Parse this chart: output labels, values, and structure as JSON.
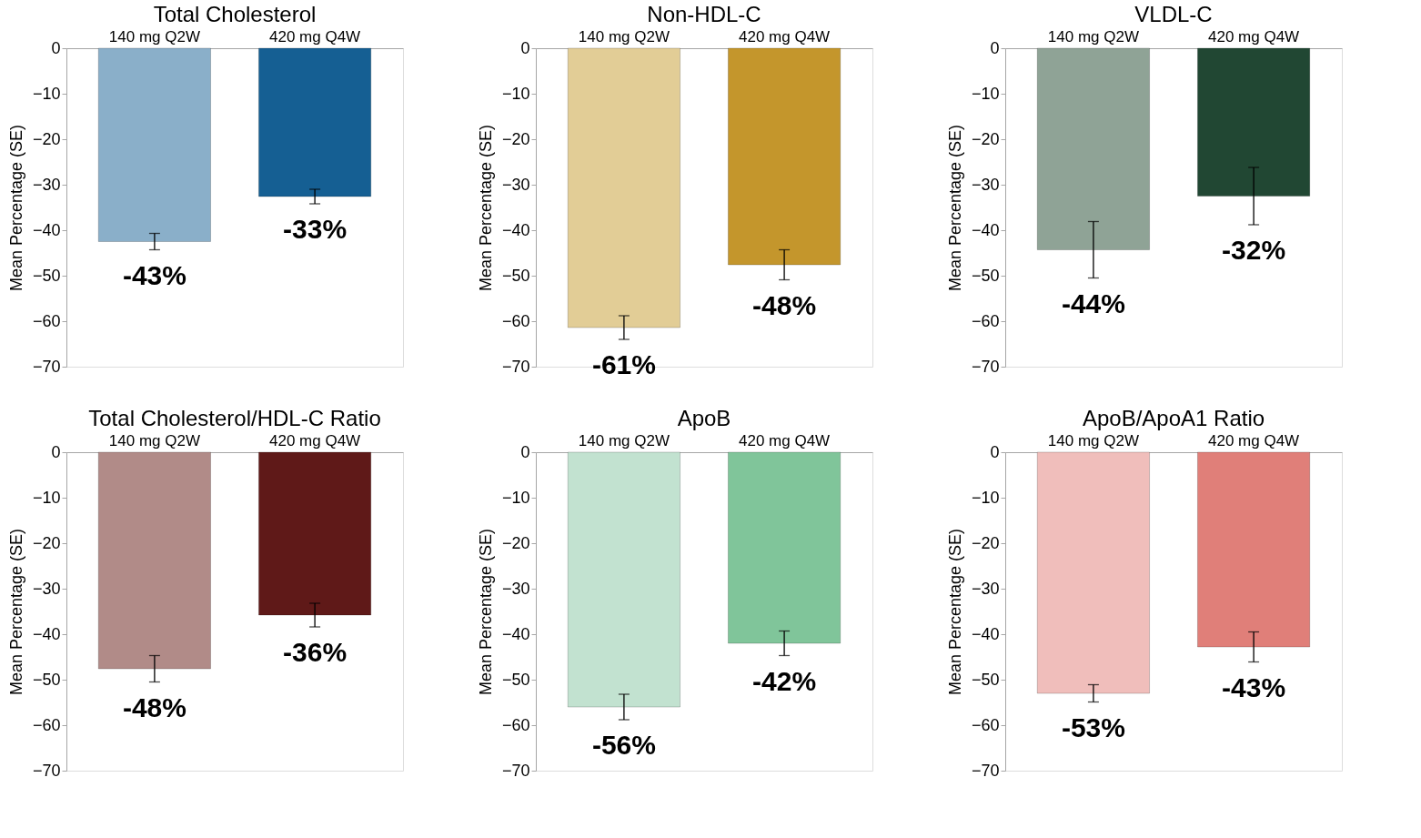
{
  "chart_data": [
    {
      "type": "bar",
      "title": "Total Cholesterol",
      "ylabel": "Mean Percentage (SE)",
      "categories": [
        "140 mg Q2W",
        "420 mg Q4W"
      ],
      "values": [
        -42.5,
        -32.6
      ],
      "errors": [
        1.8,
        1.6
      ],
      "colors": [
        "#8aafc9",
        "#155f93"
      ],
      "value_labels": [
        "-43%",
        "-33%"
      ],
      "ylim": [
        -70,
        0
      ],
      "yticks": [
        0,
        -10,
        -20,
        -30,
        -40,
        -50,
        -60,
        -70
      ],
      "grid": false
    },
    {
      "type": "bar",
      "title": "Non-HDL-C",
      "ylabel": "Mean Percentage (SE)",
      "categories": [
        "140 mg Q2W",
        "420 mg Q4W"
      ],
      "values": [
        -61.4,
        -47.6
      ],
      "errors": [
        2.6,
        3.3
      ],
      "colors": [
        "#e2cd96",
        "#c4962c"
      ],
      "value_labels": [
        "-61%",
        "-48%"
      ],
      "ylim": [
        -70,
        0
      ],
      "yticks": [
        0,
        -10,
        -20,
        -30,
        -40,
        -50,
        -60,
        -70
      ],
      "grid": false
    },
    {
      "type": "bar",
      "title": "VLDL-C",
      "ylabel": "Mean Percentage (SE)",
      "categories": [
        "140 mg Q2W",
        "420 mg Q4W"
      ],
      "values": [
        -44.3,
        -32.5
      ],
      "errors": [
        6.2,
        6.3
      ],
      "colors": [
        "#8fa396",
        "#214733"
      ],
      "value_labels": [
        "-44%",
        "-32%"
      ],
      "ylim": [
        -70,
        0
      ],
      "yticks": [
        0,
        -10,
        -20,
        -30,
        -40,
        -50,
        -60,
        -70
      ],
      "grid": false
    },
    {
      "type": "bar",
      "title": "Total Cholesterol/HDL-C Ratio",
      "ylabel": "Mean Percentage (SE)",
      "categories": [
        "140 mg Q2W",
        "420 mg Q4W"
      ],
      "values": [
        -47.6,
        -35.8
      ],
      "errors": [
        2.9,
        2.6
      ],
      "colors": [
        "#b18b88",
        "#5f1918"
      ],
      "value_labels": [
        "-48%",
        "-36%"
      ],
      "ylim": [
        -70,
        0
      ],
      "yticks": [
        0,
        -10,
        -20,
        -30,
        -40,
        -50,
        -60,
        -70
      ],
      "grid": false
    },
    {
      "type": "bar",
      "title": "ApoB",
      "ylabel": "Mean Percentage (SE)",
      "categories": [
        "140 mg Q2W",
        "420 mg Q4W"
      ],
      "values": [
        -56.0,
        -42.0
      ],
      "errors": [
        2.8,
        2.7
      ],
      "colors": [
        "#c2e2d0",
        "#80c59a"
      ],
      "value_labels": [
        "-56%",
        "-42%"
      ],
      "ylim": [
        -70,
        0
      ],
      "yticks": [
        0,
        -10,
        -20,
        -30,
        -40,
        -50,
        -60,
        -70
      ],
      "grid": false
    },
    {
      "type": "bar",
      "title": "ApoB/ApoA1 Ratio",
      "ylabel": "Mean Percentage (SE)",
      "categories": [
        "140 mg Q2W",
        "420 mg Q4W"
      ],
      "values": [
        -53.0,
        -42.8
      ],
      "errors": [
        1.9,
        3.3
      ],
      "colors": [
        "#f0bebb",
        "#e07f79"
      ],
      "value_labels": [
        "-53%",
        "-43%"
      ],
      "ylim": [
        -70,
        0
      ],
      "yticks": [
        0,
        -10,
        -20,
        -30,
        -40,
        -50,
        -60,
        -70
      ],
      "grid": false
    }
  ]
}
